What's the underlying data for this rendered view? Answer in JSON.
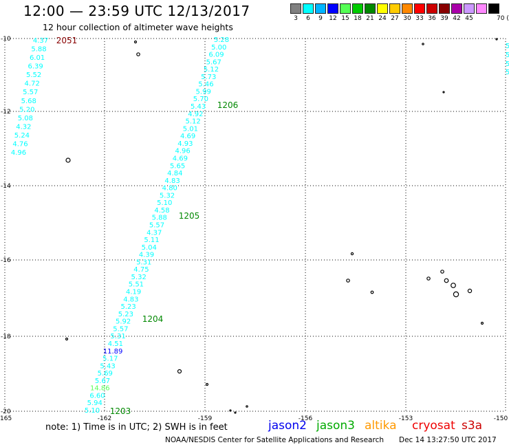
{
  "header": {
    "title": "12:00 — 23:59 UTC 12/13/2017",
    "subtitle": "12 hour collection of altimeter wave heights"
  },
  "scale": {
    "unit": "70 (ft)",
    "swatches": [
      {
        "label": "3",
        "color": "#808080"
      },
      {
        "label": "6",
        "color": "#00ffff"
      },
      {
        "label": "9",
        "color": "#00b4ff"
      },
      {
        "label": "12",
        "color": "#0000ff"
      },
      {
        "label": "15",
        "color": "#55ff55"
      },
      {
        "label": "18",
        "color": "#00cc00"
      },
      {
        "label": "21",
        "color": "#008800"
      },
      {
        "label": "24",
        "color": "#ffff00"
      },
      {
        "label": "27",
        "color": "#ffcc00"
      },
      {
        "label": "30",
        "color": "#ff8800"
      },
      {
        "label": "33",
        "color": "#ff0000"
      },
      {
        "label": "36",
        "color": "#cc0000"
      },
      {
        "label": "39",
        "color": "#880000"
      },
      {
        "label": "42",
        "color": "#aa00aa"
      },
      {
        "label": "45",
        "color": "#cc99ff"
      },
      {
        "label": "",
        "color": "#ff88ff"
      },
      {
        "label": "",
        "color": "#000000"
      }
    ]
  },
  "axes": {
    "lon_labels": [
      "-165",
      "-162",
      "-159",
      "-156",
      "-153",
      "-150"
    ],
    "lat_labels": [
      "-10",
      "-12",
      "-14",
      "-16",
      "-18",
      "-20"
    ]
  },
  "pass_times": [
    {
      "text": "2051",
      "color": "#880000"
    },
    {
      "text": "1206",
      "color": "#008800"
    },
    {
      "text": "1205",
      "color": "#008800"
    },
    {
      "text": "1204",
      "color": "#008800"
    },
    {
      "text": "1203",
      "color": "#008800"
    }
  ],
  "track_left": [
    "4.37",
    "5.88",
    "6.01",
    "6.39",
    "5.52",
    "4.72",
    "5.57",
    "5.68",
    "5.20",
    "5.08",
    "4.32",
    "5.24",
    "4.76",
    "4.96"
  ],
  "track_main": [
    {
      "text": "5.28",
      "color": "#00ffff"
    },
    {
      "text": "5.00",
      "color": "#00ffff"
    },
    {
      "text": "6.09",
      "color": "#00ffff"
    },
    {
      "text": "5.67",
      "color": "#00ffff"
    },
    {
      "text": "5.12",
      "color": "#00ffff"
    },
    {
      "text": "5.73",
      "color": "#00ffff"
    },
    {
      "text": "5.46",
      "color": "#00ffff"
    },
    {
      "text": "5.99",
      "color": "#00ffff"
    },
    {
      "text": "5.70",
      "color": "#00ffff"
    },
    {
      "text": "5.43",
      "color": "#00ffff"
    },
    {
      "text": "4.92",
      "color": "#00ffff"
    },
    {
      "text": "5.12",
      "color": "#00ffff"
    },
    {
      "text": "5.01",
      "color": "#00ffff"
    },
    {
      "text": "4.69",
      "color": "#00ffff"
    },
    {
      "text": "4.93",
      "color": "#00ffff"
    },
    {
      "text": "4.96",
      "color": "#00ffff"
    },
    {
      "text": "4.69",
      "color": "#00ffff"
    },
    {
      "text": "5.65",
      "color": "#00ffff"
    },
    {
      "text": "4.84",
      "color": "#00ffff"
    },
    {
      "text": "4.83",
      "color": "#00ffff"
    },
    {
      "text": "4.80",
      "color": "#00ffff"
    },
    {
      "text": "5.32",
      "color": "#00ffff"
    },
    {
      "text": "5.10",
      "color": "#00ffff"
    },
    {
      "text": "4.58",
      "color": "#00ffff"
    },
    {
      "text": "5.88",
      "color": "#00ffff"
    },
    {
      "text": "5.57",
      "color": "#00ffff"
    },
    {
      "text": "4.37",
      "color": "#00ffff"
    },
    {
      "text": "5.11",
      "color": "#00ffff"
    },
    {
      "text": "5.04",
      "color": "#00ffff"
    },
    {
      "text": "4.39",
      "color": "#00ffff"
    },
    {
      "text": "5.31",
      "color": "#00ffff"
    },
    {
      "text": "4.75",
      "color": "#00ffff"
    },
    {
      "text": "5.32",
      "color": "#00ffff"
    },
    {
      "text": "5.51",
      "color": "#00ffff"
    },
    {
      "text": "4.19",
      "color": "#00ffff"
    },
    {
      "text": "4.83",
      "color": "#00ffff"
    },
    {
      "text": "5.23",
      "color": "#00ffff"
    },
    {
      "text": "5.23",
      "color": "#00ffff"
    },
    {
      "text": "5.92",
      "color": "#00ffff"
    },
    {
      "text": "5.57",
      "color": "#00ffff"
    },
    {
      "text": "5.31",
      "color": "#00ffff"
    },
    {
      "text": "4.51",
      "color": "#00ffff"
    },
    {
      "text": "11.89",
      "color": "#0000ff"
    },
    {
      "text": "5.17",
      "color": "#00ffff"
    },
    {
      "text": "5.43",
      "color": "#00ffff"
    },
    {
      "text": "5.69",
      "color": "#00ffff"
    },
    {
      "text": "5.67",
      "color": "#00ffff"
    },
    {
      "text": "14.86",
      "color": "#55ff55"
    },
    {
      "text": "6.60",
      "color": "#00ffff"
    },
    {
      "text": "5.94",
      "color": "#00ffff"
    },
    {
      "text": "5.10",
      "color": "#00ffff"
    }
  ],
  "footer": {
    "note": "note:  1) Time is in UTC;  2) SWH is in feet",
    "credits": "NOAA/NESDIS Center for Satellite Applications and Research",
    "timestamp": "Dec 14 13:27:50 UTC 2017",
    "satellites": [
      {
        "name": "jason2",
        "color": "#0000ee"
      },
      {
        "name": "jason3",
        "color": "#00aa00"
      },
      {
        "name": "altika",
        "color": "#ff9900"
      },
      {
        "name": "cryosat",
        "color": "#ee0000"
      },
      {
        "name": "s3a",
        "color": "#cc0000"
      }
    ]
  }
}
